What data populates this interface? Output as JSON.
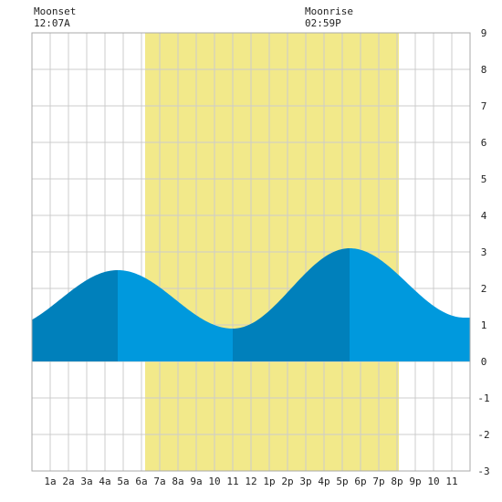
{
  "chart_data": {
    "type": "area",
    "title": "",
    "xlabel": "",
    "ylabel": "",
    "xlim": [
      0,
      24
    ],
    "ylim": [
      -3,
      9
    ],
    "y_ticks": [
      "-3",
      "-2",
      "-1",
      "0",
      "1",
      "2",
      "3",
      "4",
      "5",
      "6",
      "7",
      "8",
      "9"
    ],
    "x_ticks": [
      "1a",
      "2a",
      "3a",
      "4a",
      "5a",
      "6a",
      "7a",
      "8a",
      "9a",
      "10",
      "11",
      "12",
      "1p",
      "2p",
      "3p",
      "4p",
      "5p",
      "6p",
      "7p",
      "8p",
      "9p",
      "10",
      "11"
    ],
    "grid": true,
    "daylight": {
      "start": 6.2,
      "end": 20.1
    },
    "tide_extremes": [
      {
        "hour": 4.7,
        "height": 2.5
      },
      {
        "hour": 11.0,
        "height": 0.9
      },
      {
        "hour": 17.4,
        "height": 3.1
      },
      {
        "hour": 23.7,
        "height": 1.2
      }
    ],
    "series": [
      {
        "x": [
          0,
          1,
          2,
          3,
          4,
          4.7,
          5,
          6,
          7,
          8,
          9,
          10,
          11,
          12,
          13,
          14,
          15,
          16,
          17,
          17.4,
          18,
          19,
          20,
          21,
          22,
          23,
          24
        ],
        "values": [
          1.28,
          1.55,
          1.88,
          2.2,
          2.42,
          2.5,
          2.47,
          2.26,
          1.87,
          1.44,
          1.1,
          0.93,
          0.9,
          1.0,
          1.42,
          1.98,
          2.55,
          2.95,
          3.09,
          3.1,
          3.04,
          2.73,
          2.34,
          1.85,
          1.46,
          1.24,
          1.19
        ]
      }
    ]
  },
  "moon": {
    "moonset_label": "Moonset",
    "moonset_time": "12:07A",
    "moonrise_label": "Moonrise",
    "moonrise_time": "02:59P"
  },
  "colors": {
    "daylight": "#f2e98a",
    "tide_light": "#0099dd",
    "tide_dark": "#0080bb",
    "grid": "#cccccc"
  }
}
